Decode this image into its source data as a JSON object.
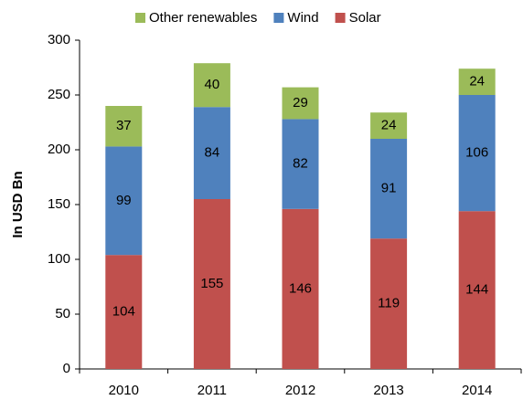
{
  "chart_data": {
    "type": "stacked_bar",
    "ylabel": "In USD Bn",
    "categories": [
      "2010",
      "2011",
      "2012",
      "2013",
      "2014"
    ],
    "series": [
      {
        "name": "Other renewables",
        "color": "#9bbb59",
        "values": [
          37,
          40,
          29,
          24,
          24
        ]
      },
      {
        "name": "Wind",
        "color": "#4f81bd",
        "values": [
          99,
          84,
          82,
          91,
          106
        ]
      },
      {
        "name": "Solar",
        "color": "#c0504d",
        "values": [
          104,
          155,
          146,
          119,
          144
        ]
      }
    ],
    "ylim": [
      0,
      300
    ],
    "yticks": [
      0,
      50,
      100,
      150,
      200,
      250,
      300
    ],
    "grid": false,
    "legend": "top"
  }
}
